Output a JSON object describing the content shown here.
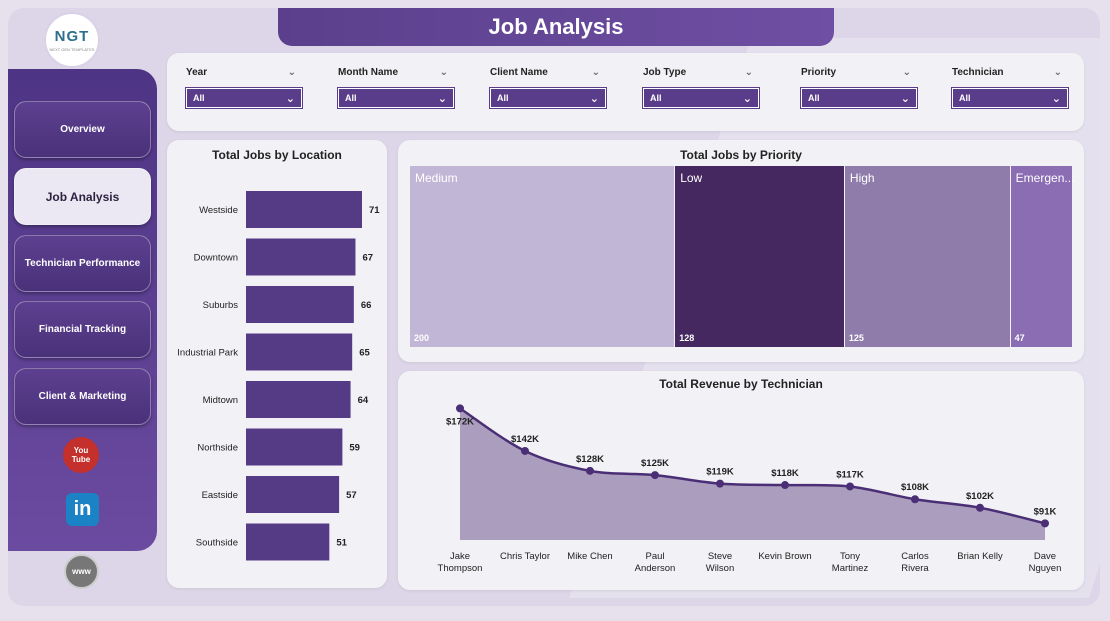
{
  "header": {
    "title": "Job Analysis"
  },
  "logo": {
    "text": "NGT",
    "subtext": "NEXT GEN TEMPLATES"
  },
  "sidebar": {
    "items": [
      {
        "label": "Overview",
        "active": false
      },
      {
        "label": "Job Analysis",
        "active": true
      },
      {
        "label": "Technician Performance",
        "active": false
      },
      {
        "label": "Financial Tracking",
        "active": false
      },
      {
        "label": "Client & Marketing",
        "active": false
      }
    ],
    "social": {
      "youtube_top": "You",
      "youtube_bottom": "Tube",
      "linkedin": "in",
      "web": "www"
    }
  },
  "filters": [
    {
      "label": "Year",
      "value": "All"
    },
    {
      "label": "Month Name",
      "value": "All"
    },
    {
      "label": "Client Name",
      "value": "All"
    },
    {
      "label": "Job Type",
      "value": "All"
    },
    {
      "label": "Priority",
      "value": "All"
    },
    {
      "label": "Technician",
      "value": "All"
    }
  ],
  "colors": {
    "accent": "#5a3d8a",
    "bar": "#553a85",
    "line": "#4b2f76",
    "area": "#ab9dbd"
  },
  "chart_data": [
    {
      "type": "bar",
      "orientation": "horizontal",
      "title": "Total Jobs by Location",
      "categories": [
        "Westside",
        "Downtown",
        "Suburbs",
        "Industrial Park",
        "Midtown",
        "Northside",
        "Eastside",
        "Southside"
      ],
      "values": [
        71,
        67,
        66,
        65,
        64,
        59,
        57,
        51
      ]
    },
    {
      "type": "treemap",
      "title": "Total Jobs by Priority",
      "categories": [
        "Medium",
        "Low",
        "High",
        "Emergen..."
      ],
      "values": [
        200,
        128,
        125,
        47
      ],
      "colors": [
        "#c2b6d6",
        "#45285f",
        "#8f7cab",
        "#8a6db3"
      ]
    },
    {
      "type": "area",
      "title": "Total Revenue by Technician",
      "categories": [
        "Jake Thompson",
        "Chris Taylor",
        "Mike Chen",
        "Paul Anderson",
        "Steve Wilson",
        "Kevin Brown",
        "Tony Martinez",
        "Carlos Rivera",
        "Brian Kelly",
        "Dave Nguyen"
      ],
      "category_lines": [
        [
          "Jake",
          "Thompson"
        ],
        [
          "Chris Taylor"
        ],
        [
          "Mike Chen"
        ],
        [
          "Paul",
          "Anderson"
        ],
        [
          "Steve",
          "Wilson"
        ],
        [
          "Kevin Brown"
        ],
        [
          "Tony",
          "Martinez"
        ],
        [
          "Carlos",
          "Rivera"
        ],
        [
          "Brian Kelly"
        ],
        [
          "Dave",
          "Nguyen"
        ]
      ],
      "values": [
        172,
        142,
        128,
        125,
        119,
        118,
        117,
        108,
        102,
        91
      ],
      "value_labels": [
        "$172K",
        "$142K",
        "$128K",
        "$125K",
        "$119K",
        "$118K",
        "$117K",
        "$108K",
        "$102K",
        "$91K"
      ]
    }
  ]
}
